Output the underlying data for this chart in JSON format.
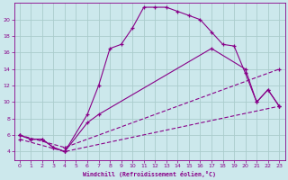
{
  "xlabel": "Windchill (Refroidissement éolien,°C)",
  "bg_color": "#cce8ec",
  "line_color": "#880088",
  "grid_color": "#aacccc",
  "xlim": [
    -0.5,
    23.5
  ],
  "ylim": [
    3.0,
    22.0
  ],
  "xticks": [
    0,
    1,
    2,
    3,
    4,
    5,
    6,
    7,
    8,
    9,
    10,
    11,
    12,
    13,
    14,
    15,
    16,
    17,
    18,
    19,
    20,
    21,
    22,
    23
  ],
  "yticks": [
    4,
    6,
    8,
    10,
    12,
    14,
    16,
    18,
    20
  ],
  "line1_x": [
    0,
    1,
    2,
    3,
    4,
    6,
    7,
    8,
    9,
    10,
    11,
    12,
    13,
    14,
    15,
    16,
    17,
    18,
    19,
    20,
    21,
    22,
    23
  ],
  "line1_y": [
    6.0,
    5.5,
    5.5,
    4.5,
    4.0,
    8.5,
    12.0,
    16.5,
    17.0,
    19.0,
    21.5,
    21.5,
    21.5,
    21.0,
    20.5,
    20.0,
    18.5,
    17.0,
    16.8,
    13.5,
    10.0,
    11.5,
    9.5
  ],
  "line2_x": [
    0,
    1,
    2,
    3,
    4,
    6,
    7,
    17,
    20,
    21,
    22,
    23
  ],
  "line2_y": [
    6.0,
    5.5,
    5.5,
    4.5,
    4.0,
    7.5,
    8.5,
    16.5,
    14.0,
    10.0,
    11.5,
    9.5
  ],
  "line3_x": [
    0,
    4,
    23
  ],
  "line3_y": [
    5.5,
    4.0,
    9.5
  ],
  "line4_x": [
    0,
    4,
    23
  ],
  "line4_y": [
    6.0,
    4.5,
    14.0
  ],
  "marker": "+"
}
